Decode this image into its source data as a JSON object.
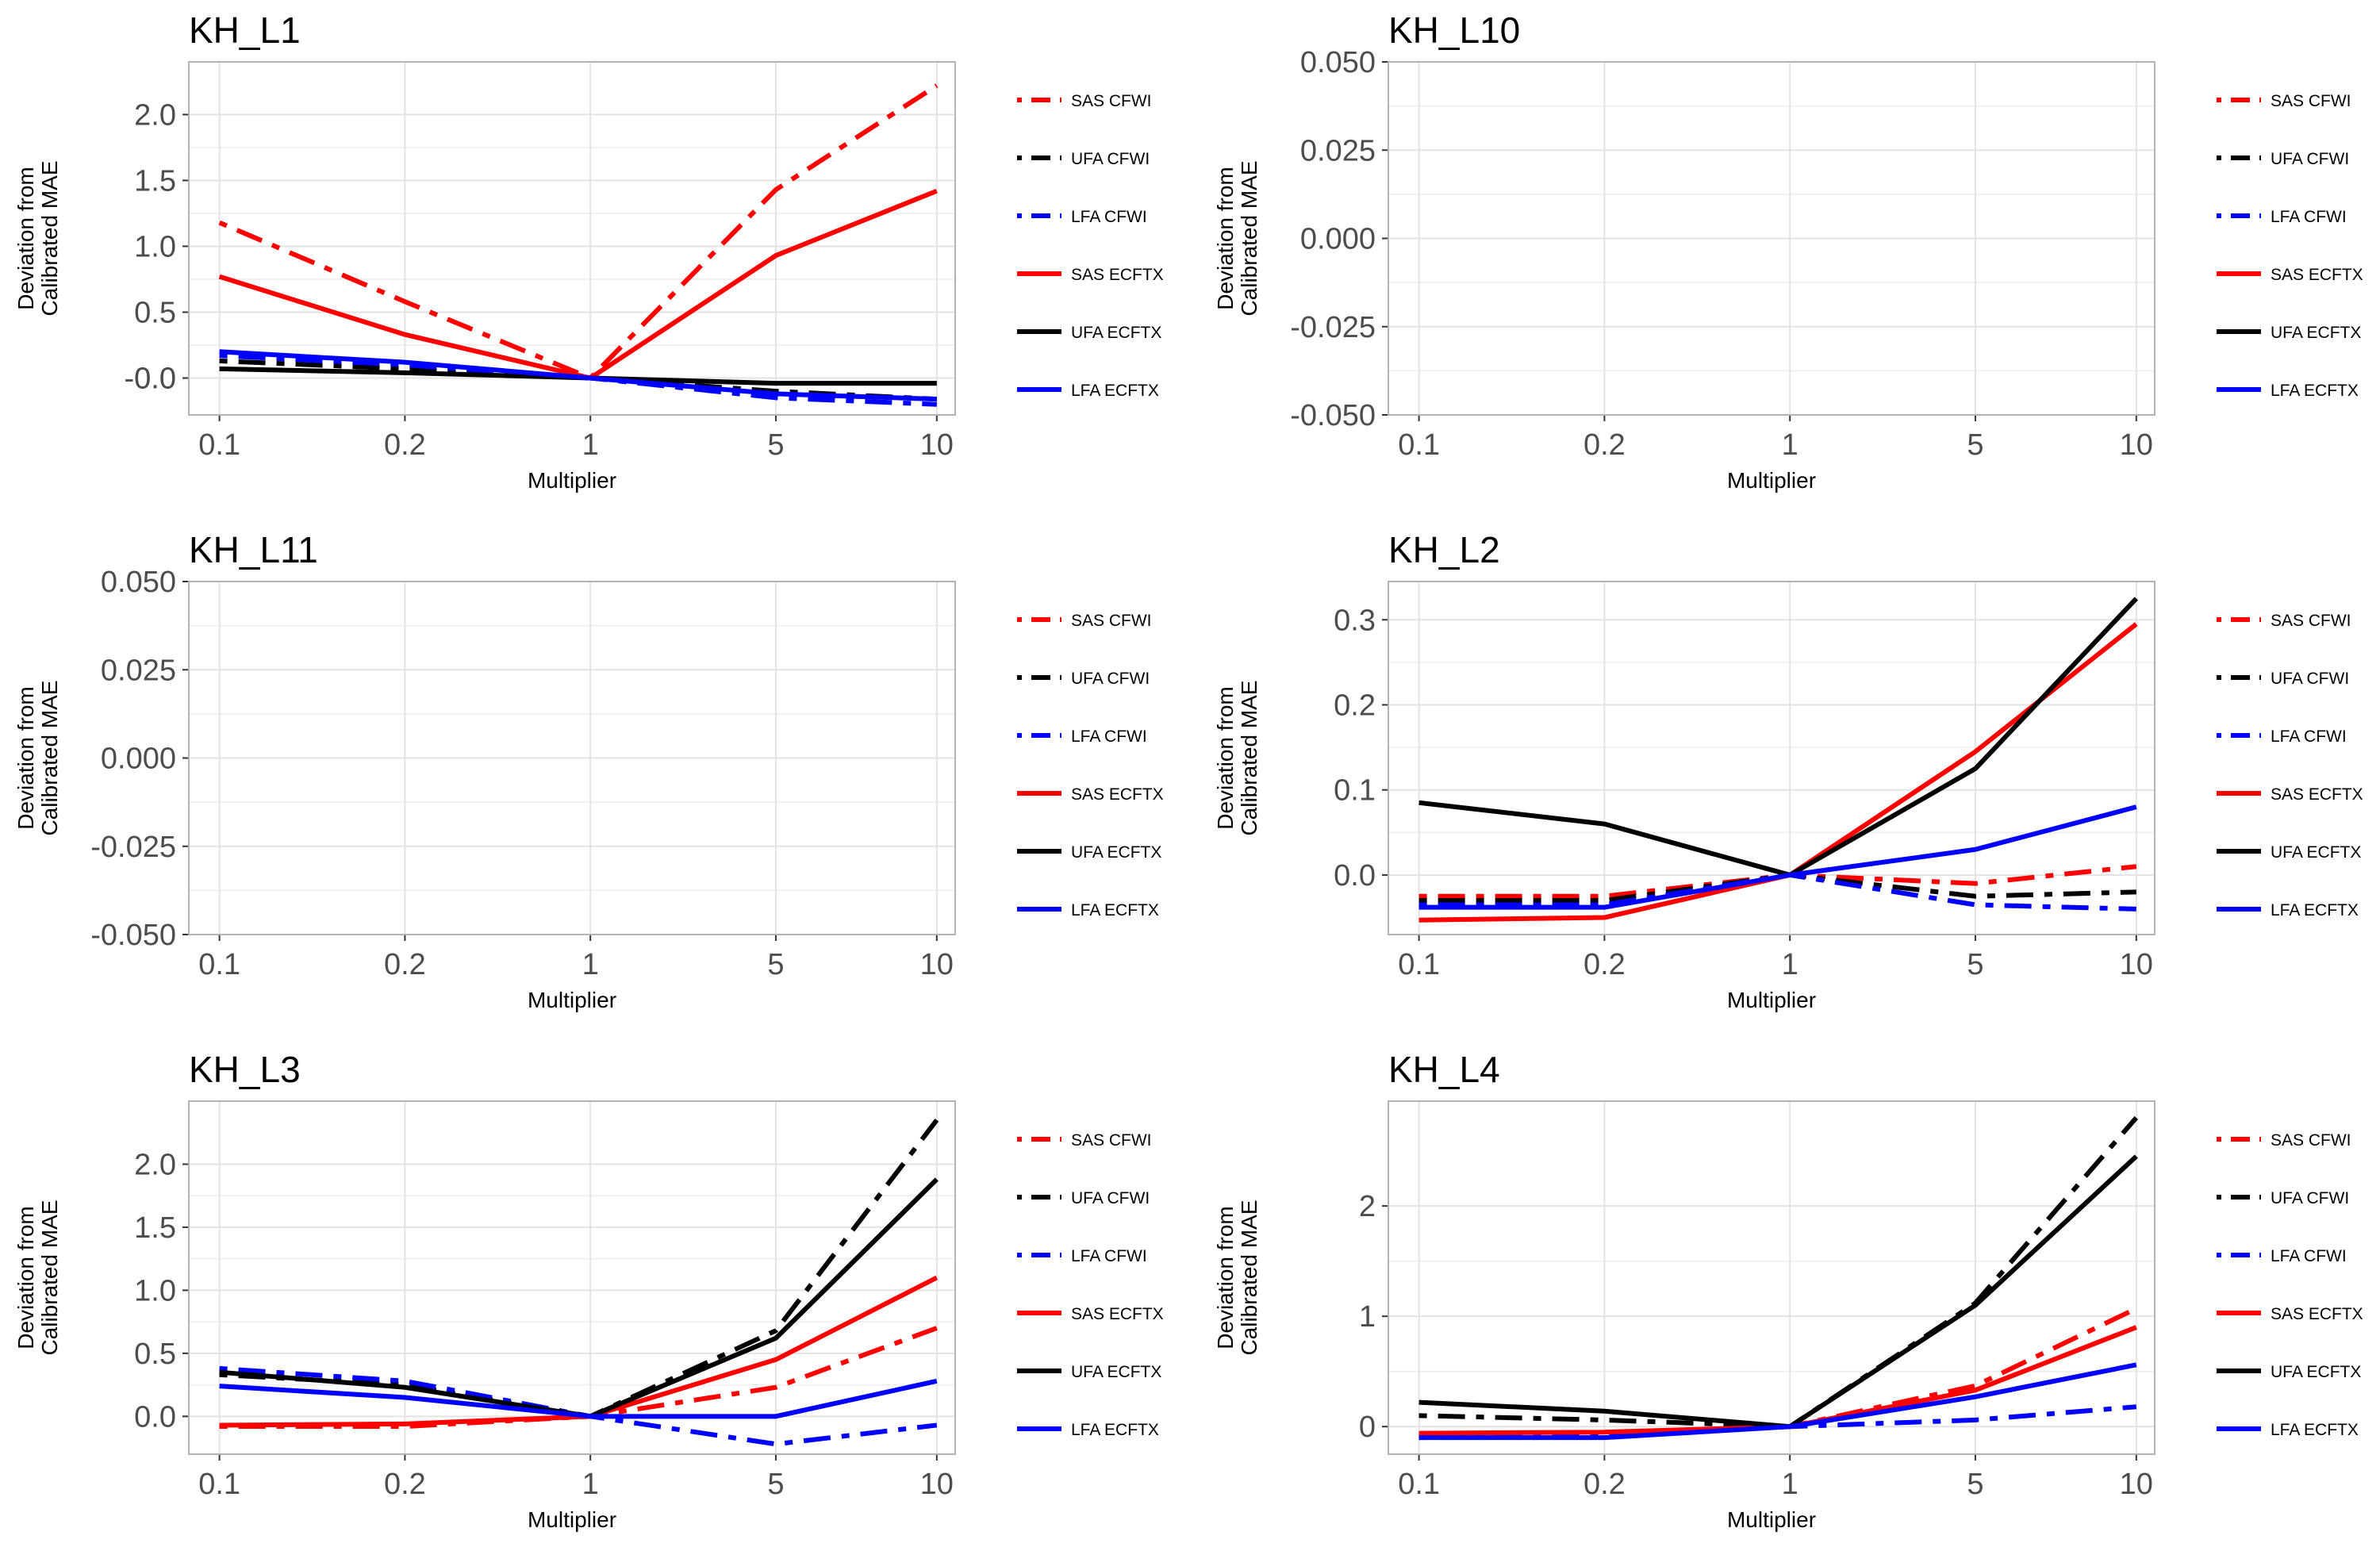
{
  "legend": {
    "entries": [
      {
        "name": "SAS CFWI",
        "color": "#ff0000",
        "dash": "dotdash"
      },
      {
        "name": "UFA CFWI",
        "color": "#000000",
        "dash": "dotdash"
      },
      {
        "name": "LFA CFWI",
        "color": "#0000ff",
        "dash": "dotdash"
      },
      {
        "name": "SAS ECFTX",
        "color": "#ff0000",
        "dash": "solid"
      },
      {
        "name": "UFA ECFTX",
        "color": "#000000",
        "dash": "solid"
      },
      {
        "name": "LFA ECFTX",
        "color": "#0000ff",
        "dash": "solid"
      }
    ]
  },
  "chart_data": [
    {
      "type": "line",
      "title": "KH_L1",
      "xlabel": "Multiplier",
      "ylabel": "Deviation from Calibrated MAE",
      "x_categories": [
        "0.1",
        "0.2",
        "1",
        "5",
        "10"
      ],
      "ylim": [
        -0.28,
        2.4
      ],
      "yticks": [
        "-0.0",
        "0.0",
        "0.5",
        "1.0",
        "1.5",
        "2.0"
      ],
      "ytick_values": [
        -0.0001,
        0,
        0.5,
        1.0,
        1.5,
        2.0
      ],
      "grid": true,
      "series": [
        {
          "name": "SAS CFWI",
          "values": [
            1.18,
            0.58,
            0.0,
            1.43,
            2.22
          ]
        },
        {
          "name": "UFA CFWI",
          "values": [
            0.13,
            0.07,
            0.0,
            -0.1,
            -0.16
          ]
        },
        {
          "name": "LFA CFWI",
          "values": [
            0.17,
            0.1,
            0.0,
            -0.15,
            -0.2
          ]
        },
        {
          "name": "SAS ECFTX",
          "values": [
            0.77,
            0.33,
            0.0,
            0.93,
            1.42
          ]
        },
        {
          "name": "UFA ECFTX",
          "values": [
            0.07,
            0.04,
            0.0,
            -0.04,
            -0.04
          ]
        },
        {
          "name": "LFA ECFTX",
          "values": [
            0.2,
            0.12,
            0.0,
            -0.12,
            -0.16
          ]
        }
      ]
    },
    {
      "type": "line",
      "title": "KH_L10",
      "xlabel": "Multiplier",
      "ylabel": "Deviation from Calibrated MAE",
      "x_categories": [
        "0.1",
        "0.2",
        "1",
        "5",
        "10"
      ],
      "ylim": [
        -0.05,
        0.05
      ],
      "yticks": [
        "-0.050",
        "-0.025",
        "0.000",
        "0.025",
        "0.050"
      ],
      "ytick_values": [
        -0.05,
        -0.025,
        0.0,
        0.025,
        0.05
      ],
      "grid": true,
      "series": []
    },
    {
      "type": "line",
      "title": "KH_L11",
      "xlabel": "Multiplier",
      "ylabel": "Deviation from Calibrated MAE",
      "x_categories": [
        "0.1",
        "0.2",
        "1",
        "5",
        "10"
      ],
      "ylim": [
        -0.05,
        0.05
      ],
      "yticks": [
        "-0.050",
        "-0.025",
        "0.000",
        "0.025",
        "0.050"
      ],
      "ytick_values": [
        -0.05,
        -0.025,
        0.0,
        0.025,
        0.05
      ],
      "grid": true,
      "series": []
    },
    {
      "type": "line",
      "title": "KH_L2",
      "xlabel": "Multiplier",
      "ylabel": "Deviation from Calibrated MAE",
      "x_categories": [
        "0.1",
        "0.2",
        "1",
        "5",
        "10"
      ],
      "ylim": [
        -0.07,
        0.345
      ],
      "yticks": [
        "0.0",
        "0.1",
        "0.2",
        "0.3"
      ],
      "ytick_values": [
        0.0,
        0.1,
        0.2,
        0.3
      ],
      "grid": true,
      "series": [
        {
          "name": "SAS CFWI",
          "values": [
            -0.025,
            -0.025,
            0.0,
            -0.01,
            0.01
          ]
        },
        {
          "name": "UFA CFWI",
          "values": [
            -0.03,
            -0.03,
            0.0,
            -0.025,
            -0.02
          ]
        },
        {
          "name": "LFA CFWI",
          "values": [
            -0.035,
            -0.035,
            0.0,
            -0.035,
            -0.04
          ]
        },
        {
          "name": "SAS ECFTX",
          "values": [
            -0.053,
            -0.05,
            0.0,
            0.145,
            0.295
          ]
        },
        {
          "name": "UFA ECFTX",
          "values": [
            0.085,
            0.06,
            0.0,
            0.125,
            0.325
          ]
        },
        {
          "name": "LFA ECFTX",
          "values": [
            -0.038,
            -0.038,
            0.0,
            0.03,
            0.08
          ]
        }
      ]
    },
    {
      "type": "line",
      "title": "KH_L3",
      "xlabel": "Multiplier",
      "ylabel": "Deviation from Calibrated MAE",
      "x_categories": [
        "0.1",
        "0.2",
        "1",
        "5",
        "10"
      ],
      "ylim": [
        -0.3,
        2.5
      ],
      "yticks": [
        "0.0",
        "0.5",
        "1.0",
        "1.5",
        "2.0"
      ],
      "ytick_values": [
        0.0,
        0.5,
        1.0,
        1.5,
        2.0
      ],
      "grid": true,
      "series": [
        {
          "name": "SAS CFWI",
          "values": [
            -0.08,
            -0.08,
            0.0,
            0.23,
            0.7
          ]
        },
        {
          "name": "UFA CFWI",
          "values": [
            0.33,
            0.25,
            0.0,
            0.68,
            2.35
          ]
        },
        {
          "name": "LFA CFWI",
          "values": [
            0.38,
            0.28,
            0.0,
            -0.22,
            -0.07
          ]
        },
        {
          "name": "SAS ECFTX",
          "values": [
            -0.07,
            -0.06,
            0.0,
            0.45,
            1.1
          ]
        },
        {
          "name": "UFA ECFTX",
          "values": [
            0.35,
            0.23,
            0.0,
            0.62,
            1.88
          ]
        },
        {
          "name": "LFA ECFTX",
          "values": [
            0.24,
            0.15,
            0.0,
            0.0,
            0.28
          ]
        }
      ]
    },
    {
      "type": "line",
      "title": "KH_L4",
      "xlabel": "Multiplier",
      "ylabel": "Deviation from Calibrated MAE",
      "x_categories": [
        "0.1",
        "0.2",
        "1",
        "5",
        "10"
      ],
      "ylim": [
        -0.25,
        2.95
      ],
      "yticks": [
        "0",
        "1",
        "2"
      ],
      "ytick_values": [
        0,
        1,
        2
      ],
      "grid": true,
      "series": [
        {
          "name": "SAS CFWI",
          "values": [
            -0.08,
            -0.06,
            0.0,
            0.37,
            1.07
          ]
        },
        {
          "name": "UFA CFWI",
          "values": [
            0.1,
            0.06,
            0.0,
            1.12,
            2.8
          ]
        },
        {
          "name": "LFA CFWI",
          "values": [
            -0.1,
            -0.08,
            0.0,
            0.06,
            0.18
          ]
        },
        {
          "name": "SAS ECFTX",
          "values": [
            -0.06,
            -0.05,
            0.0,
            0.33,
            0.9
          ]
        },
        {
          "name": "UFA ECFTX",
          "values": [
            0.22,
            0.14,
            0.0,
            1.1,
            2.45
          ]
        },
        {
          "name": "LFA ECFTX",
          "values": [
            -0.1,
            -0.1,
            0.0,
            0.27,
            0.56
          ]
        }
      ]
    }
  ]
}
